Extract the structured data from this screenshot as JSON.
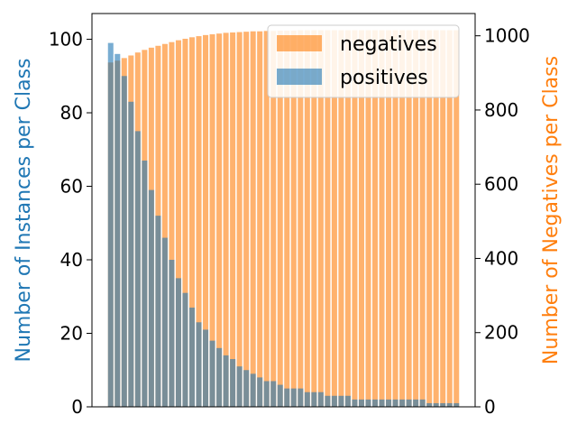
{
  "chart_data": {
    "type": "bar",
    "x_tick_labels": [],
    "y_left": {
      "label": "Number of Instances per Class",
      "color": "#1f77b4",
      "ylim": [
        0,
        107
      ],
      "ticks": [
        0,
        20,
        40,
        60,
        80,
        100
      ]
    },
    "y_right": {
      "label": "Number of Negatives per Class",
      "color": "#ff7f0e",
      "ylim": [
        0,
        1060
      ],
      "ticks": [
        0,
        200,
        400,
        600,
        800,
        1000
      ]
    },
    "legend": {
      "placement": "top-right",
      "entries": [
        "negatives",
        "positives"
      ]
    },
    "grid": false,
    "series": [
      {
        "name": "positives",
        "axis": "left",
        "color": "#1f77b4",
        "alpha": 0.6,
        "values": [
          99,
          96,
          90,
          83,
          75,
          67,
          59,
          52,
          46,
          40,
          35,
          31,
          27,
          23,
          21,
          18,
          16,
          14,
          13,
          11,
          10,
          9,
          8,
          7,
          7,
          6,
          5,
          5,
          5,
          4,
          4,
          4,
          3,
          3,
          3,
          3,
          2,
          2,
          2,
          2,
          2,
          2,
          2,
          2,
          2,
          2,
          2,
          1,
          1,
          1,
          1,
          1
        ]
      },
      {
        "name": "negatives",
        "axis": "right",
        "color": "#ff7f0e",
        "alpha": 0.6,
        "values": [
          928,
          933,
          940,
          947,
          955,
          962,
          968,
          973,
          978,
          983,
          988,
          992,
          996,
          999,
          1002,
          1004,
          1006,
          1008,
          1009,
          1010,
          1011,
          1012,
          1012,
          1013,
          1013,
          1014,
          1014,
          1014,
          1015,
          1015,
          1015,
          1015,
          1015,
          1015,
          1015,
          1015,
          1015,
          1015,
          1015,
          1015,
          1015,
          1015,
          1015,
          1015,
          1015,
          1015,
          1015,
          1015,
          1015,
          1015,
          1015,
          1015
        ]
      }
    ]
  }
}
